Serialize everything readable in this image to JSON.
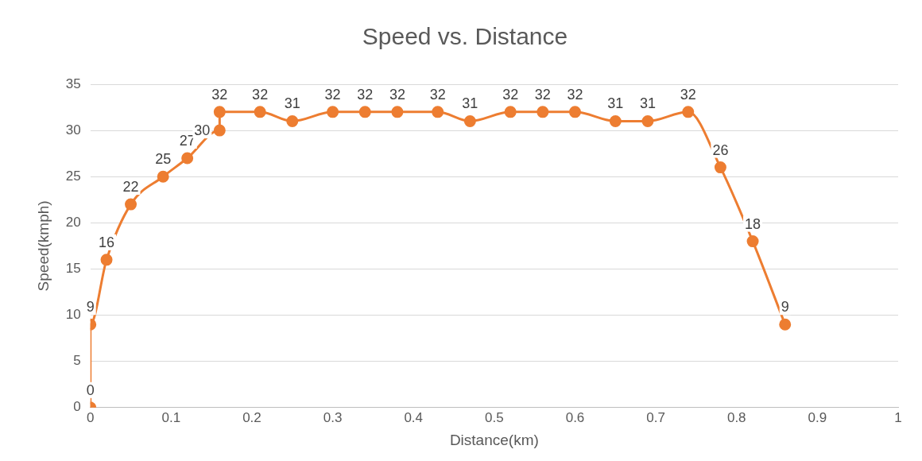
{
  "chart_data": {
    "type": "line",
    "title": "Speed vs. Distance",
    "xlabel": "Distance(km)",
    "ylabel": "Speed(kmph)",
    "series": [
      {
        "color": "#ed7d31",
        "x": [
          0,
          0,
          0.02,
          0.05,
          0.09,
          0.12,
          0.16,
          0.16,
          0.21,
          0.25,
          0.3,
          0.34,
          0.38,
          0.43,
          0.47,
          0.52,
          0.56,
          0.6,
          0.65,
          0.69,
          0.74,
          0.78,
          0.82,
          0.86
        ],
        "values": [
          0,
          9,
          16,
          22,
          25,
          27,
          30,
          32,
          32,
          31,
          32,
          32,
          32,
          32,
          31,
          32,
          32,
          32,
          31,
          31,
          32,
          26,
          18,
          9
        ]
      }
    ],
    "xlim": [
      0,
      1
    ],
    "xticks": [
      0,
      0.1,
      0.2,
      0.3,
      0.4,
      0.5,
      0.6,
      0.7,
      0.8,
      0.9,
      1
    ],
    "ylim": [
      0,
      35
    ],
    "yticks": [
      0,
      5,
      10,
      15,
      20,
      25,
      30,
      35
    ],
    "grid": "y",
    "legend": false,
    "marker": "circle",
    "line_style": "solid",
    "data_labels": true
  }
}
